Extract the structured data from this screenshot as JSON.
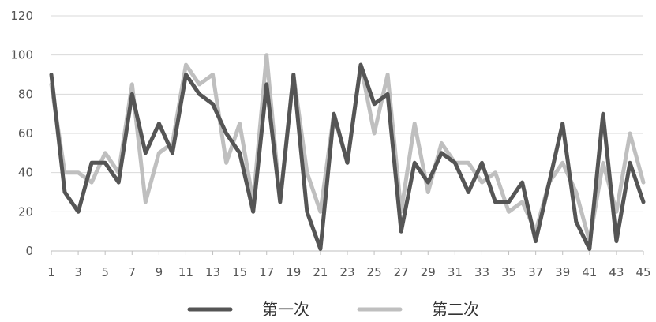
{
  "chart_data": {
    "type": "line",
    "title": "",
    "xlabel": "",
    "ylabel": "",
    "ylim": [
      0,
      120
    ],
    "y_ticks": [
      0,
      20,
      40,
      60,
      80,
      100,
      120
    ],
    "x_tick_labels": [
      "1",
      "3",
      "5",
      "7",
      "9",
      "11",
      "13",
      "15",
      "17",
      "19",
      "21",
      "23",
      "25",
      "27",
      "29",
      "31",
      "33",
      "35",
      "37",
      "39",
      "41",
      "43",
      "45"
    ],
    "grid": "horizontal",
    "legend_position": "bottom",
    "x": [
      1,
      2,
      3,
      4,
      5,
      6,
      7,
      8,
      9,
      10,
      11,
      12,
      13,
      14,
      15,
      16,
      17,
      18,
      19,
      20,
      21,
      22,
      23,
      24,
      25,
      26,
      27,
      28,
      29,
      30,
      31,
      32,
      33,
      34,
      35,
      36,
      37,
      38,
      39,
      40,
      41,
      42,
      43,
      44,
      45
    ],
    "series": [
      {
        "name": "第一次",
        "color": "#555555",
        "values": [
          90,
          30,
          20,
          45,
          45,
          35,
          80,
          50,
          65,
          50,
          90,
          80,
          75,
          60,
          50,
          20,
          85,
          25,
          90,
          20,
          1,
          70,
          45,
          95,
          75,
          80,
          10,
          45,
          35,
          50,
          45,
          30,
          45,
          25,
          25,
          35,
          5,
          35,
          65,
          15,
          1,
          70,
          5,
          45,
          25
        ]
      },
      {
        "name": "第二次",
        "color": "#bfbfbf",
        "values": [
          85,
          40,
          40,
          35,
          50,
          40,
          85,
          25,
          50,
          55,
          95,
          85,
          90,
          45,
          65,
          25,
          100,
          25,
          90,
          40,
          20,
          70,
          45,
          95,
          60,
          90,
          20,
          65,
          30,
          55,
          45,
          45,
          35,
          40,
          20,
          25,
          10,
          35,
          45,
          30,
          5,
          45,
          20,
          60,
          35
        ]
      }
    ]
  }
}
